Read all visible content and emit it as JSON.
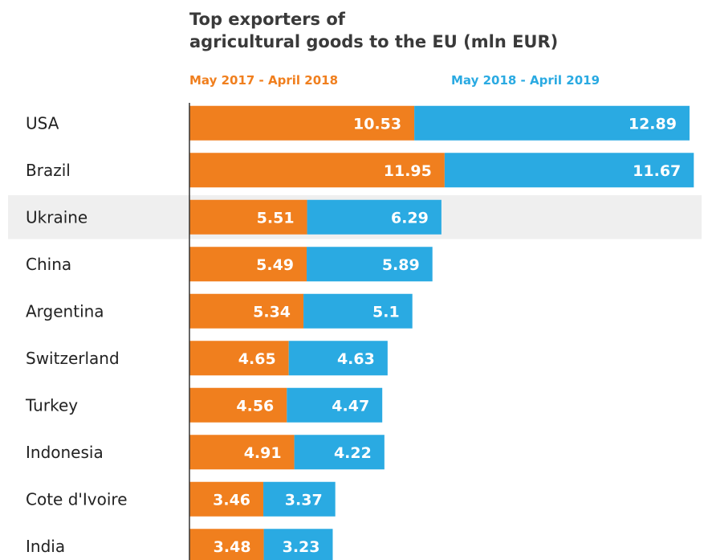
{
  "chart_data": {
    "type": "bar",
    "orientation": "horizontal",
    "stacked": true,
    "title": "Top exporters of agricultural goods to the EU (mln EUR)",
    "title_lines": [
      "Top exporters of",
      "agricultural goods to the EU (mln EUR)"
    ],
    "categories": [
      "USA",
      "Brazil",
      "Ukraine",
      "China",
      "Argentina",
      "Switzerland",
      "Turkey",
      "Indonesia",
      "Cote d'Ivoire",
      "India"
    ],
    "series": [
      {
        "name": "May 2017 - April 2018",
        "color": "#f07f1e",
        "values": [
          10.53,
          11.95,
          5.51,
          5.49,
          5.34,
          4.65,
          4.56,
          4.91,
          3.46,
          3.48
        ],
        "labels": [
          "10.53",
          "11.95",
          "5.51",
          "5.49",
          "5.34",
          "4.65",
          "4.56",
          "4.91",
          "3.46",
          "3.48"
        ]
      },
      {
        "name": "May 2018 - April 2019",
        "color": "#2aaae2",
        "values": [
          12.89,
          11.67,
          6.29,
          5.89,
          5.1,
          4.63,
          4.47,
          4.22,
          3.37,
          3.23
        ],
        "labels": [
          "12.89",
          "11.67",
          "6.29",
          "5.89",
          "5.1",
          "4.63",
          "4.47",
          "4.22",
          "3.37",
          "3.23"
        ]
      }
    ],
    "highlight_category": "Ukraine",
    "highlight_color": "#efefef",
    "text_color": "#222222",
    "axis_line_color": "#333333",
    "grid": false,
    "legend_position": "top"
  }
}
